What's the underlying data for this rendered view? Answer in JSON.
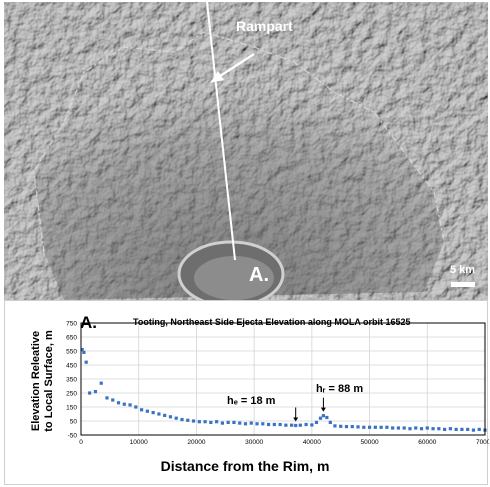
{
  "figure": {
    "rampart_label": "Rampart",
    "crater_label": "A.",
    "scale_label": "5 km"
  },
  "chart_data": {
    "type": "scatter",
    "panel_label": "A.",
    "title": "Tooting, Northeast Side Ejecta Elevation along MOLA orbit 16525",
    "xlabel": "Distance from the Rim, m",
    "ylabel_line1": "Elevation Releative",
    "ylabel_line2": "to Local Surface, m",
    "xlim": [
      0,
      70000
    ],
    "ylim": [
      -50,
      750
    ],
    "x_ticks": [
      "0",
      "10000",
      "20000",
      "30000",
      "40000",
      "50000",
      "60000",
      "70000"
    ],
    "y_ticks": [
      "-50",
      "50",
      "150",
      "250",
      "350",
      "450",
      "550",
      "650",
      "750"
    ],
    "grid": true,
    "marker_color": "#3a72c4",
    "annotations": [
      {
        "text": "hₑ = 18 m",
        "x": 37200,
        "y": 18
      },
      {
        "text": "hᵣ = 88 m",
        "x": 42000,
        "y": 88
      }
    ],
    "x": [
      200,
      500,
      900,
      1500,
      2500,
      3500,
      4500,
      5500,
      6500,
      7500,
      8500,
      9500,
      10500,
      11500,
      12500,
      13500,
      14500,
      15500,
      16500,
      17500,
      18500,
      19500,
      20500,
      21500,
      22500,
      23500,
      24500,
      25500,
      26500,
      27500,
      28500,
      29500,
      30500,
      31500,
      32500,
      33500,
      34500,
      35500,
      36500,
      37200,
      38000,
      39000,
      40000,
      40800,
      41500,
      42000,
      42600,
      43200,
      44000,
      45000,
      46000,
      47000,
      48000,
      49000,
      50000,
      51000,
      52000,
      53000,
      54000,
      55000,
      56000,
      57000,
      58000,
      59000,
      60000,
      61000,
      62000,
      63000,
      64000,
      65000,
      66000,
      67000,
      68000,
      69000,
      70000
    ],
    "y": [
      560,
      540,
      470,
      250,
      260,
      320,
      215,
      200,
      180,
      170,
      165,
      150,
      130,
      120,
      110,
      100,
      90,
      80,
      70,
      60,
      55,
      50,
      45,
      45,
      40,
      45,
      35,
      40,
      40,
      35,
      30,
      35,
      30,
      30,
      25,
      25,
      25,
      20,
      20,
      18,
      20,
      25,
      22,
      40,
      70,
      88,
      75,
      40,
      15,
      12,
      10,
      10,
      8,
      5,
      5,
      5,
      5,
      5,
      0,
      0,
      0,
      -5,
      0,
      -5,
      0,
      -5,
      -5,
      -10,
      -5,
      -10,
      -10,
      -10,
      -15,
      -10,
      -15
    ]
  }
}
